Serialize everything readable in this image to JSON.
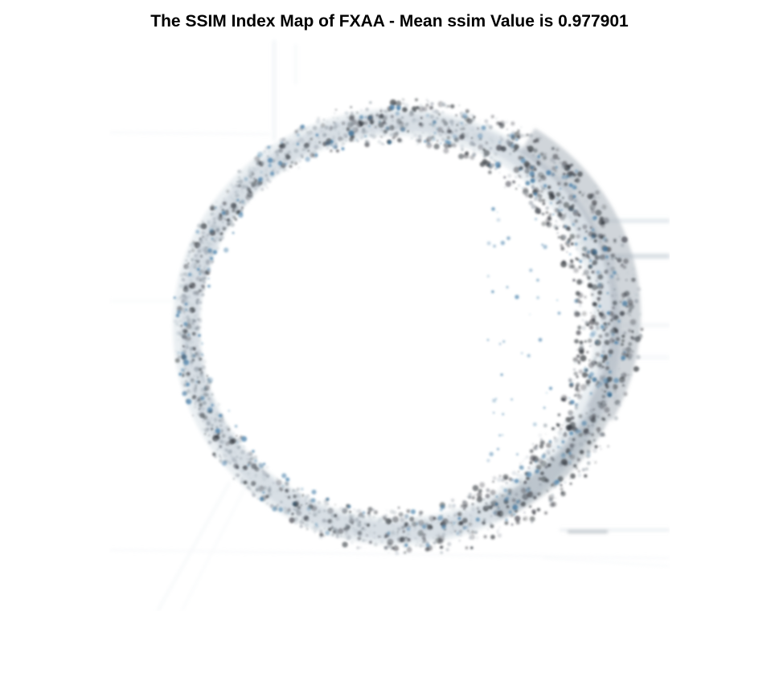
{
  "figure": {
    "title": "The SSIM Index Map of FXAA - Mean ssim Value is 0.977901"
  },
  "image": {
    "description_name": "ssim-index-map",
    "colors": {
      "background": "#ffffff",
      "ring_dark": "#2b2f36",
      "ring_mid": "#7a8590",
      "ring_blue": "#2f6f9f",
      "ring_light": "#b9c3cc",
      "faint_lines": "#dfe7ee"
    }
  }
}
